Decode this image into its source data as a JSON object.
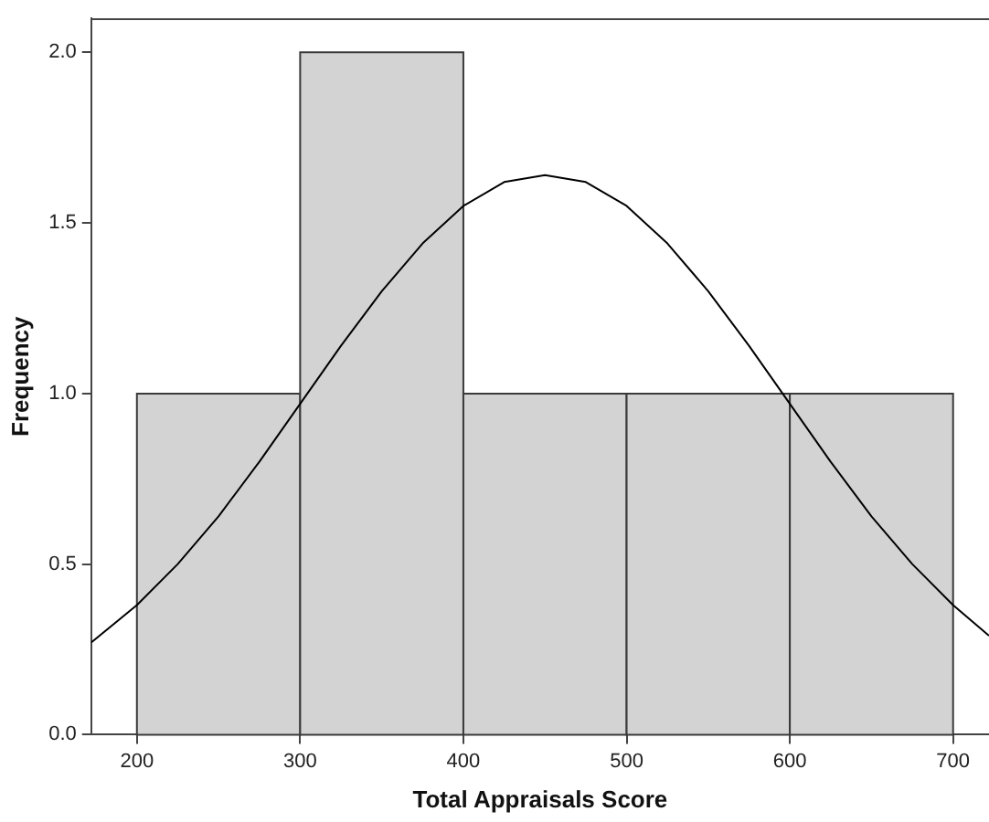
{
  "chart_data": {
    "type": "histogram",
    "xlabel": "Total Appraisals Score",
    "ylabel": "Frequency",
    "bins": [
      200,
      300,
      400,
      500,
      600,
      700
    ],
    "values": [
      1,
      2,
      1,
      1,
      1
    ],
    "color": "#d3d3d3",
    "xlim": [
      172,
      722
    ],
    "ylim": [
      0,
      2.1
    ],
    "xticks": [
      200,
      300,
      400,
      500,
      600,
      700
    ],
    "yticks": [
      {
        "value": 0,
        "label": "0.0"
      },
      {
        "value": 0.5,
        "label": "0.5"
      },
      {
        "value": 1,
        "label": "1.0"
      },
      {
        "value": 1.5,
        "label": "1.5"
      },
      {
        "value": 2,
        "label": "2.0"
      }
    ],
    "grid": false,
    "series": [
      {
        "type": "line",
        "color": "#000000",
        "x": [
          172,
          200,
          225,
          250,
          275,
          300,
          325,
          350,
          375,
          400,
          425,
          450,
          475,
          500,
          525,
          550,
          575,
          600,
          625,
          650,
          675,
          700,
          722
        ],
        "values": [
          0.27,
          0.38,
          0.5,
          0.64,
          0.8,
          0.97,
          1.14,
          1.3,
          1.44,
          1.55,
          1.62,
          1.64,
          1.62,
          1.55,
          1.44,
          1.3,
          1.14,
          0.97,
          0.8,
          0.64,
          0.5,
          0.38,
          0.29
        ]
      }
    ]
  }
}
